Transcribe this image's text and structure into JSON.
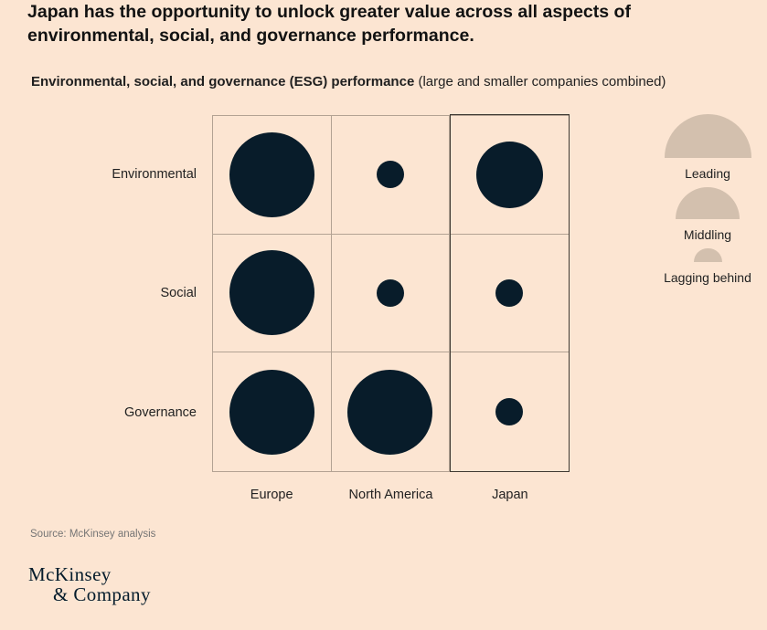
{
  "page": {
    "background": "#fce5d2",
    "title_lines": [
      "Japan has the opportunity to unlock greater value across all aspects of",
      "environmental, social, and governance performance."
    ],
    "subtitle": {
      "bold": "Environmental, social, and governance (ESG) performance",
      "regular": " (large and smaller companies combined)"
    },
    "source": "Source: McKinsey analysis",
    "logo": {
      "line1": "McKinsey",
      "line2": "& Company"
    }
  },
  "chart_data": {
    "type": "bubble",
    "subtype": "matrix",
    "title": "Environmental, social, and governance (ESG) performance",
    "subtitle": "(large and smaller companies combined)",
    "rows": [
      "Environmental",
      "Social",
      "Governance"
    ],
    "columns": [
      "Europe",
      "North America",
      "Japan"
    ],
    "highlighted_column": "Japan",
    "ratings": [
      [
        "Leading",
        "Lagging behind",
        "Middling"
      ],
      [
        "Leading",
        "Lagging behind",
        "Lagging behind"
      ],
      [
        "Leading",
        "Leading",
        "Lagging behind"
      ]
    ],
    "legend": {
      "position": "right",
      "entries": [
        {
          "label": "Leading",
          "diameter": 95
        },
        {
          "label": "Middling",
          "diameter": 70
        },
        {
          "label": "Lagging behind",
          "diameter": 31
        }
      ]
    },
    "bubble_diameters": {
      "Leading": 93,
      "Middling": 73,
      "Lagging behind": 30
    },
    "colors": {
      "bubble": "#081c2a",
      "legend_shape": "#d3c0ae",
      "grid_line": "#b3a293",
      "highlight_border": "#3f3a33"
    }
  }
}
